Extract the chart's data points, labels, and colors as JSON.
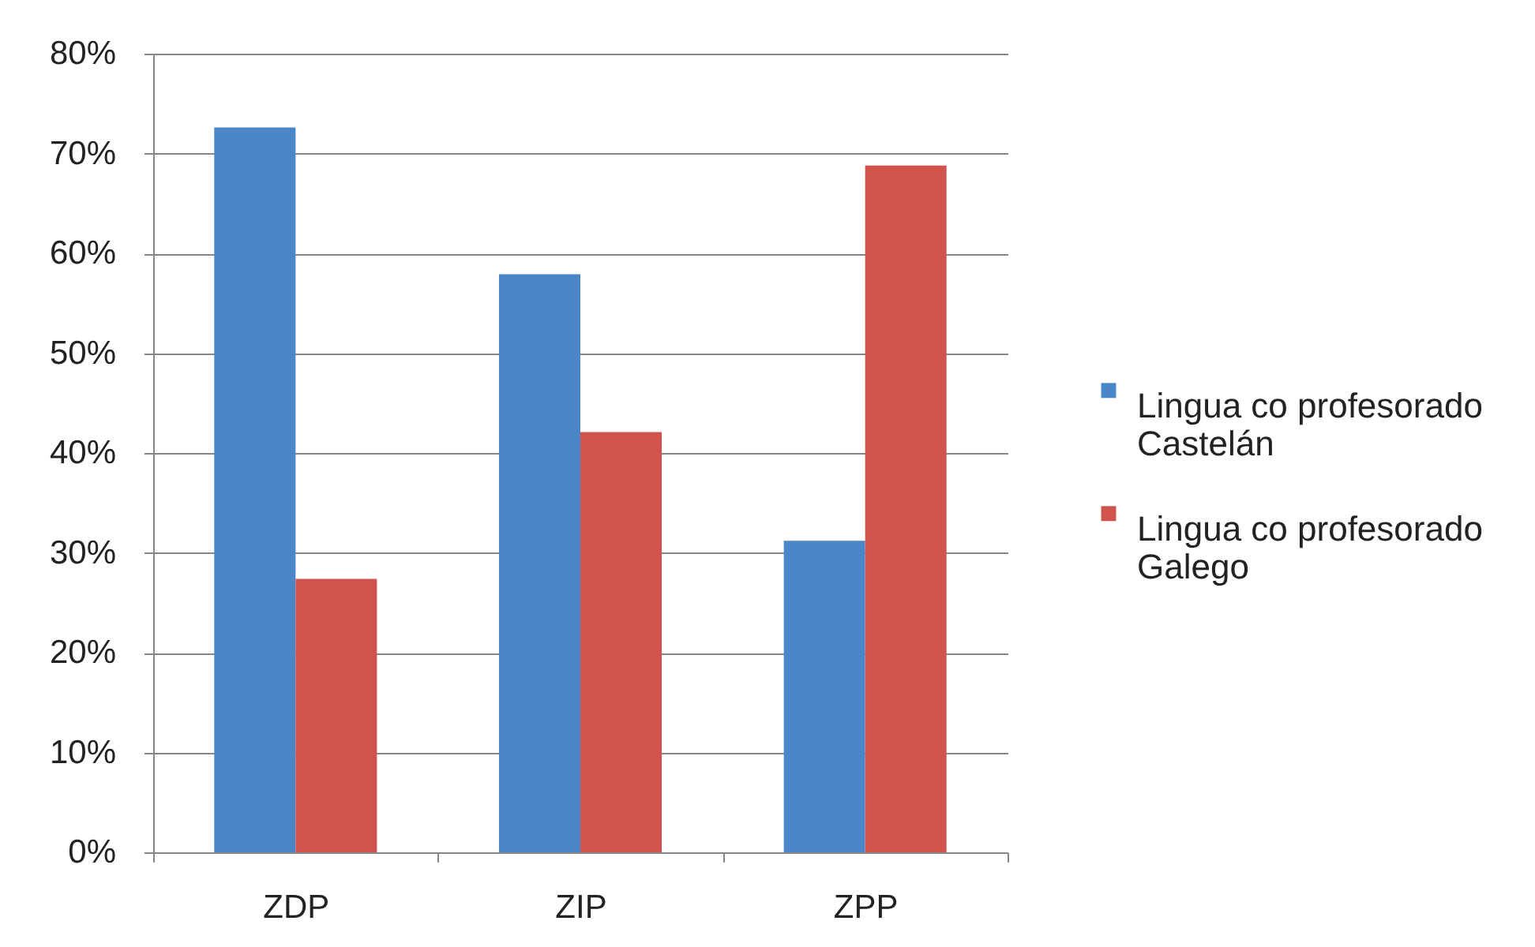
{
  "chart_data": {
    "type": "bar",
    "categories": [
      "ZDP",
      "ZIP",
      "ZPP"
    ],
    "series": [
      {
        "name": "Lingua co profesorado Castelán",
        "color": "#4a86c8",
        "values": [
          72.6,
          57.9,
          31.2
        ]
      },
      {
        "name": "Lingua co profesorado Galego",
        "color": "#d0534e",
        "values": [
          27.4,
          42.1,
          68.8
        ]
      }
    ],
    "ylim": [
      0,
      80
    ],
    "yticks": [
      {
        "value": 0,
        "label": "0%"
      },
      {
        "value": 10,
        "label": "10%"
      },
      {
        "value": 20,
        "label": "20%"
      },
      {
        "value": 30,
        "label": "30%"
      },
      {
        "value": 40,
        "label": "40%"
      },
      {
        "value": 50,
        "label": "50%"
      },
      {
        "value": 60,
        "label": "60%"
      },
      {
        "value": 70,
        "label": "70%"
      },
      {
        "value": 80,
        "label": "80%"
      }
    ],
    "grid": "y",
    "legend": "right"
  }
}
